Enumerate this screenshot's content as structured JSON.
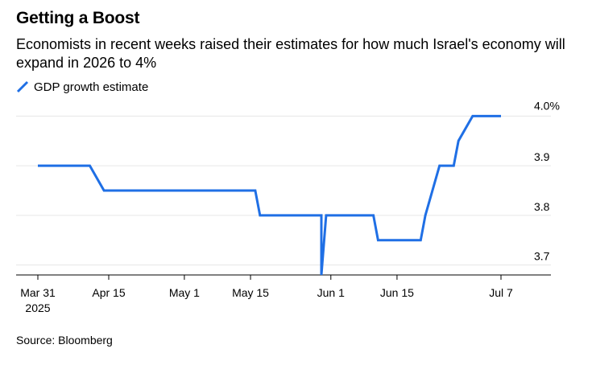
{
  "title": "Getting a Boost",
  "subtitle": "Economists in recent weeks raised their estimates for how much Israel's economy will expand in 2026 to 4%",
  "source": "Source: Bloomberg",
  "colors": {
    "line": "#1f6fe5",
    "grid": "#e6e6e6",
    "axis": "#000000"
  },
  "chart_data": {
    "type": "line",
    "title": "Getting a Boost",
    "subtitle": "Economists in recent weeks raised their estimates for how much Israel's economy will expand in 2026 to 4%",
    "xlabel": "",
    "ylabel": "",
    "grid": true,
    "legend_position": "top-left",
    "ylim": [
      3.68,
      4.02
    ],
    "xlim": [
      "2025-03-31",
      "2025-07-07"
    ],
    "y_ticks": [
      {
        "value": 4.0,
        "label": "4.0%"
      },
      {
        "value": 3.9,
        "label": "3.9"
      },
      {
        "value": 3.8,
        "label": "3.8"
      },
      {
        "value": 3.7,
        "label": "3.7"
      }
    ],
    "x_ticks": [
      {
        "date": "2025-03-31",
        "label": "Mar 31",
        "label2": "2025"
      },
      {
        "date": "2025-04-15",
        "label": "Apr 15"
      },
      {
        "date": "2025-05-01",
        "label": "May 1"
      },
      {
        "date": "2025-05-15",
        "label": "May 15"
      },
      {
        "date": "2025-06-01",
        "label": "Jun 1"
      },
      {
        "date": "2025-06-15",
        "label": "Jun 15"
      },
      {
        "date": "2025-07-07",
        "label": "Jul 7"
      }
    ],
    "series": [
      {
        "name": "GDP growth estimate",
        "points": [
          [
            "2025-03-31",
            3.9
          ],
          [
            "2025-04-11",
            3.9
          ],
          [
            "2025-04-14",
            3.85
          ],
          [
            "2025-05-16",
            3.85
          ],
          [
            "2025-05-17",
            3.8
          ],
          [
            "2025-05-24",
            3.8
          ],
          [
            "2025-05-30",
            3.8
          ],
          [
            "2025-05-30",
            3.68
          ],
          [
            "2025-05-31",
            3.8
          ],
          [
            "2025-06-10",
            3.8
          ],
          [
            "2025-06-11",
            3.75
          ],
          [
            "2025-06-20",
            3.75
          ],
          [
            "2025-06-21",
            3.8
          ],
          [
            "2025-06-24",
            3.9
          ],
          [
            "2025-06-27",
            3.9
          ],
          [
            "2025-06-28",
            3.95
          ],
          [
            "2025-07-01",
            4.0
          ],
          [
            "2025-07-07",
            4.0
          ]
        ]
      }
    ]
  }
}
